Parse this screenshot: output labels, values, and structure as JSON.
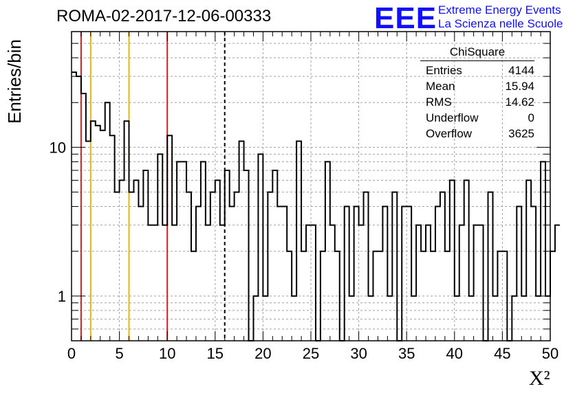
{
  "title": "ROMA-02-2017-12-06-00333",
  "logo": {
    "mark": "EEE",
    "line1": "Extreme Energy Events",
    "line2": "La Scienza nelle Scuole",
    "color": "#1010ff"
  },
  "stats": {
    "title": "ChiSquare",
    "rows": [
      {
        "label": "Entries",
        "value": "4144"
      },
      {
        "label": "Mean",
        "value": "15.94"
      },
      {
        "label": "RMS",
        "value": "14.62"
      },
      {
        "label": "Underflow",
        "value": "0"
      },
      {
        "label": "Overflow",
        "value": "3625"
      }
    ]
  },
  "chart_data": {
    "type": "histogram",
    "xlabel": "X²",
    "ylabel": "Entries/bin",
    "xlim": [
      0,
      50
    ],
    "ylim": [
      0.5,
      60
    ],
    "y_scale": "log",
    "grid": true,
    "x_ticks": [
      "0",
      "5",
      "10",
      "15",
      "20",
      "25",
      "30",
      "35",
      "40",
      "45",
      "50"
    ],
    "y_ticks": [
      "1",
      "10"
    ],
    "bin_width": 0.5,
    "values": [
      32,
      30,
      23,
      11,
      15,
      14,
      13,
      20,
      12,
      5,
      6,
      15,
      5,
      6,
      4,
      7,
      3,
      3,
      9,
      3,
      12,
      3,
      8,
      8,
      5,
      2,
      4,
      8,
      3,
      5,
      6,
      3,
      7,
      4,
      5,
      11,
      7,
      0,
      1,
      9,
      1,
      5,
      7,
      4,
      4,
      2,
      1,
      11,
      2,
      3,
      3,
      0,
      2,
      8,
      3,
      2,
      0,
      4,
      1,
      4,
      3,
      5,
      1,
      2,
      2,
      4,
      1,
      5,
      0,
      4,
      4,
      1,
      3,
      2,
      3,
      2,
      4,
      5,
      2,
      6,
      1,
      3,
      6,
      1,
      3,
      3,
      0,
      5,
      1,
      2,
      2,
      0,
      1,
      4,
      1,
      6,
      4,
      1,
      8,
      1,
      2,
      3
    ],
    "vertical_lines": [
      {
        "x": 1,
        "color": "#d42020",
        "style": "solid"
      },
      {
        "x": 2,
        "color": "#f0b400",
        "style": "solid"
      },
      {
        "x": 6,
        "color": "#f0b400",
        "style": "solid"
      },
      {
        "x": 10,
        "color": "#d42020",
        "style": "solid"
      },
      {
        "x": 16,
        "color": "#000000",
        "style": "dashed"
      }
    ]
  }
}
